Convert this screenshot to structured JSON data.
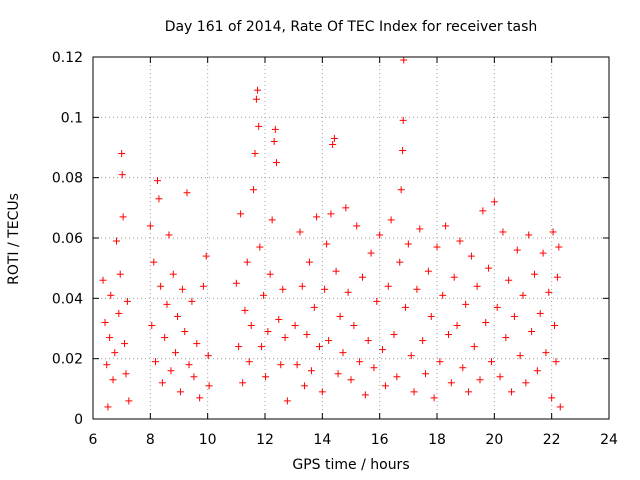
{
  "chart_data": {
    "type": "scatter",
    "title": "Day 161 of 2014, Rate Of TEC Index for receiver tash",
    "xlabel": "GPS time / hours",
    "ylabel": "ROTI / TECUs",
    "xlim": [
      6,
      24
    ],
    "ylim": [
      0,
      0.12
    ],
    "xticks": [
      6,
      8,
      10,
      12,
      14,
      16,
      18,
      20,
      22,
      24
    ],
    "yticks": [
      0,
      0.02,
      0.04,
      0.06,
      0.08,
      0.1,
      0.12
    ],
    "xtick_labels": [
      "6",
      "8",
      "10",
      "12",
      "14",
      "16",
      "18",
      "20",
      "22",
      "24"
    ],
    "ytick_labels": [
      "0",
      "0.02",
      "0.04",
      "0.06",
      "0.08",
      "0.1",
      "0.12"
    ],
    "grid": true,
    "marker": "+",
    "color": "#ff0000",
    "series": [
      {
        "name": "ROTI",
        "points": [
          [
            6.35,
            0.046
          ],
          [
            6.42,
            0.032
          ],
          [
            6.48,
            0.018
          ],
          [
            6.52,
            0.004
          ],
          [
            6.58,
            0.027
          ],
          [
            6.62,
            0.041
          ],
          [
            6.7,
            0.013
          ],
          [
            6.76,
            0.022
          ],
          [
            6.82,
            0.059
          ],
          [
            6.9,
            0.035
          ],
          [
            6.95,
            0.048
          ],
          [
            7.0,
            0.088
          ],
          [
            7.02,
            0.081
          ],
          [
            7.05,
            0.067
          ],
          [
            7.1,
            0.025
          ],
          [
            7.15,
            0.015
          ],
          [
            7.2,
            0.039
          ],
          [
            7.25,
            0.006
          ],
          [
            8.0,
            0.064
          ],
          [
            8.05,
            0.031
          ],
          [
            8.12,
            0.052
          ],
          [
            8.18,
            0.019
          ],
          [
            8.25,
            0.079
          ],
          [
            8.3,
            0.073
          ],
          [
            8.36,
            0.044
          ],
          [
            8.42,
            0.012
          ],
          [
            8.5,
            0.027
          ],
          [
            8.58,
            0.038
          ],
          [
            8.65,
            0.061
          ],
          [
            8.72,
            0.016
          ],
          [
            8.8,
            0.048
          ],
          [
            8.88,
            0.022
          ],
          [
            8.95,
            0.034
          ],
          [
            9.05,
            0.009
          ],
          [
            9.12,
            0.043
          ],
          [
            9.2,
            0.029
          ],
          [
            9.28,
            0.075
          ],
          [
            9.35,
            0.018
          ],
          [
            9.45,
            0.039
          ],
          [
            9.52,
            0.014
          ],
          [
            9.62,
            0.025
          ],
          [
            9.72,
            0.007
          ],
          [
            9.85,
            0.044
          ],
          [
            9.95,
            0.054
          ],
          [
            10.02,
            0.021
          ],
          [
            10.05,
            0.011
          ],
          [
            11.0,
            0.045
          ],
          [
            11.08,
            0.024
          ],
          [
            11.15,
            0.068
          ],
          [
            11.22,
            0.012
          ],
          [
            11.3,
            0.036
          ],
          [
            11.38,
            0.052
          ],
          [
            11.45,
            0.019
          ],
          [
            11.52,
            0.031
          ],
          [
            11.6,
            0.076
          ],
          [
            11.65,
            0.088
          ],
          [
            11.7,
            0.106
          ],
          [
            11.74,
            0.109
          ],
          [
            11.78,
            0.097
          ],
          [
            11.82,
            0.057
          ],
          [
            11.88,
            0.024
          ],
          [
            11.95,
            0.041
          ],
          [
            12.02,
            0.014
          ],
          [
            12.1,
            0.029
          ],
          [
            12.18,
            0.048
          ],
          [
            12.25,
            0.066
          ],
          [
            12.32,
            0.092
          ],
          [
            12.36,
            0.096
          ],
          [
            12.4,
            0.085
          ],
          [
            12.48,
            0.033
          ],
          [
            12.55,
            0.018
          ],
          [
            12.62,
            0.043
          ],
          [
            12.7,
            0.027
          ],
          [
            12.78,
            0.006
          ],
          [
            13.05,
            0.031
          ],
          [
            13.12,
            0.018
          ],
          [
            13.22,
            0.062
          ],
          [
            13.3,
            0.044
          ],
          [
            13.38,
            0.011
          ],
          [
            13.46,
            0.028
          ],
          [
            13.55,
            0.052
          ],
          [
            13.62,
            0.016
          ],
          [
            13.72,
            0.037
          ],
          [
            13.8,
            0.067
          ],
          [
            13.9,
            0.024
          ],
          [
            14.0,
            0.009
          ],
          [
            14.08,
            0.043
          ],
          [
            14.15,
            0.058
          ],
          [
            14.22,
            0.026
          ],
          [
            14.3,
            0.068
          ],
          [
            14.36,
            0.091
          ],
          [
            14.42,
            0.093
          ],
          [
            14.48,
            0.049
          ],
          [
            14.55,
            0.015
          ],
          [
            14.62,
            0.034
          ],
          [
            14.72,
            0.022
          ],
          [
            14.82,
            0.07
          ],
          [
            14.9,
            0.042
          ],
          [
            15.0,
            0.013
          ],
          [
            15.1,
            0.031
          ],
          [
            15.2,
            0.064
          ],
          [
            15.3,
            0.019
          ],
          [
            15.4,
            0.047
          ],
          [
            15.5,
            0.008
          ],
          [
            15.6,
            0.026
          ],
          [
            15.7,
            0.055
          ],
          [
            15.8,
            0.017
          ],
          [
            15.9,
            0.039
          ],
          [
            16.0,
            0.061
          ],
          [
            16.1,
            0.023
          ],
          [
            16.2,
            0.011
          ],
          [
            16.3,
            0.044
          ],
          [
            16.4,
            0.066
          ],
          [
            16.5,
            0.028
          ],
          [
            16.6,
            0.014
          ],
          [
            16.7,
            0.052
          ],
          [
            16.75,
            0.076
          ],
          [
            16.8,
            0.089
          ],
          [
            16.82,
            0.099
          ],
          [
            16.84,
            0.119
          ],
          [
            16.9,
            0.037
          ],
          [
            17.0,
            0.058
          ],
          [
            17.1,
            0.021
          ],
          [
            17.2,
            0.009
          ],
          [
            17.3,
            0.043
          ],
          [
            17.4,
            0.063
          ],
          [
            17.5,
            0.026
          ],
          [
            17.6,
            0.015
          ],
          [
            17.7,
            0.049
          ],
          [
            17.8,
            0.034
          ],
          [
            17.9,
            0.007
          ],
          [
            18.0,
            0.057
          ],
          [
            18.1,
            0.019
          ],
          [
            18.2,
            0.041
          ],
          [
            18.3,
            0.064
          ],
          [
            18.4,
            0.028
          ],
          [
            18.5,
            0.012
          ],
          [
            18.6,
            0.047
          ],
          [
            18.7,
            0.031
          ],
          [
            18.8,
            0.059
          ],
          [
            18.9,
            0.017
          ],
          [
            19.0,
            0.038
          ],
          [
            19.1,
            0.009
          ],
          [
            19.2,
            0.054
          ],
          [
            19.3,
            0.024
          ],
          [
            19.4,
            0.044
          ],
          [
            19.5,
            0.013
          ],
          [
            19.6,
            0.069
          ],
          [
            19.7,
            0.032
          ],
          [
            19.8,
            0.05
          ],
          [
            19.9,
            0.019
          ],
          [
            20.0,
            0.072
          ],
          [
            20.1,
            0.037
          ],
          [
            20.2,
            0.014
          ],
          [
            20.3,
            0.062
          ],
          [
            20.4,
            0.027
          ],
          [
            20.5,
            0.046
          ],
          [
            20.6,
            0.009
          ],
          [
            20.7,
            0.034
          ],
          [
            20.8,
            0.056
          ],
          [
            20.9,
            0.021
          ],
          [
            21.0,
            0.041
          ],
          [
            21.1,
            0.012
          ],
          [
            21.2,
            0.061
          ],
          [
            21.3,
            0.029
          ],
          [
            21.4,
            0.048
          ],
          [
            21.5,
            0.016
          ],
          [
            21.6,
            0.035
          ],
          [
            21.7,
            0.055
          ],
          [
            21.8,
            0.022
          ],
          [
            21.9,
            0.042
          ],
          [
            22.0,
            0.007
          ],
          [
            22.05,
            0.062
          ],
          [
            22.1,
            0.031
          ],
          [
            22.15,
            0.019
          ],
          [
            22.2,
            0.047
          ],
          [
            22.25,
            0.057
          ],
          [
            22.3,
            0.004
          ]
        ]
      }
    ]
  }
}
